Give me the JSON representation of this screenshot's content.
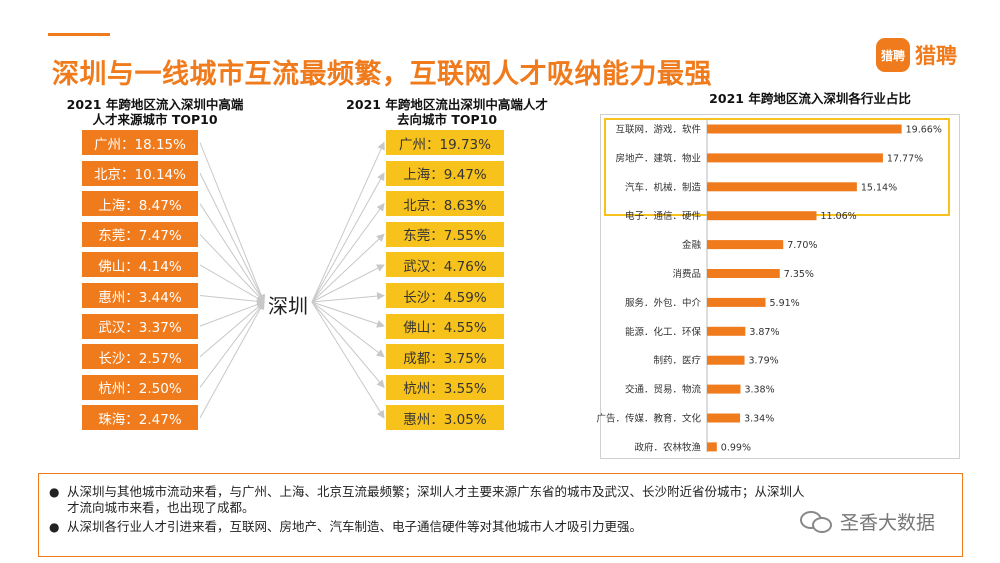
{
  "headline": "深圳与一线城市互流最频繁，互联网人才吸纳能力最强",
  "logo": {
    "badge": "猎聘",
    "text": "猎聘"
  },
  "center_city": "深圳",
  "chart_data": [
    {
      "type": "table",
      "title": "2021 年跨地区流入深圳中高端人才来源城市 TOP10",
      "title_lines": [
        "2021 年跨地区流入深圳中高端",
        "人才来源城市 TOP10"
      ],
      "categories": [
        "广州",
        "北京",
        "上海",
        "东莞",
        "佛山",
        "惠州",
        "武汉",
        "长沙",
        "杭州",
        "珠海"
      ],
      "values": [
        18.15,
        10.14,
        8.47,
        7.47,
        4.14,
        3.44,
        3.37,
        2.57,
        2.5,
        2.47
      ],
      "labels": [
        "广州：18.15%",
        "北京：10.14%",
        "上海：8.47%",
        "东莞：7.47%",
        "佛山：4.14%",
        "惠州：3.44%",
        "武汉：3.37%",
        "长沙：2.57%",
        "杭州：2.50%",
        "珠海：2.47%"
      ],
      "color": "#f07b1d"
    },
    {
      "type": "table",
      "title": "2021 年跨地区流出深圳中高端人才去向城市 TOP10",
      "title_lines": [
        "2021 年跨地区流出深圳中高端人才",
        "去向城市 TOP10"
      ],
      "categories": [
        "广州",
        "上海",
        "北京",
        "东莞",
        "武汉",
        "长沙",
        "佛山",
        "成都",
        "杭州",
        "惠州"
      ],
      "values": [
        19.73,
        9.47,
        8.63,
        7.55,
        4.76,
        4.59,
        4.55,
        3.75,
        3.55,
        3.05
      ],
      "labels": [
        "广州：19.73%",
        "上海：9.47%",
        "北京：8.63%",
        "东莞：7.55%",
        "武汉：4.76%",
        "长沙：4.59%",
        "佛山：4.55%",
        "成都：3.75%",
        "杭州：3.55%",
        "惠州：3.05%"
      ],
      "color": "#f7c21c"
    },
    {
      "type": "bar",
      "orientation": "horizontal",
      "title": "2021 年跨地区流入深圳各行业占比",
      "categories": [
        "互联网．游戏．软件",
        "房地产．建筑．物业",
        "汽车．机械．制造",
        "电子．通信．硬件",
        "金融",
        "消费品",
        "服务．外包．中介",
        "能源．化工．环保",
        "制药．医疗",
        "交通．贸易．物流",
        "广告．传媒．教育．文化",
        "政府．农林牧渔"
      ],
      "values": [
        19.66,
        17.77,
        15.14,
        11.06,
        7.7,
        7.35,
        5.91,
        3.87,
        3.79,
        3.38,
        3.34,
        0.99
      ],
      "value_labels": [
        "19.66%",
        "17.77%",
        "15.14%",
        "11.06%",
        "7.70%",
        "7.35%",
        "5.91%",
        "3.87%",
        "3.79%",
        "3.38%",
        "3.34%",
        "0.99%"
      ],
      "highlighted_categories": [
        "互联网．游戏．软件",
        "房地产．建筑．物业",
        "汽车．机械．制造",
        "电子．通信．硬件"
      ],
      "xlim": [
        0,
        20
      ],
      "color": "#f07b1d",
      "highlight_color": "#f7c21c",
      "grid": false,
      "legend": "none"
    }
  ],
  "notes": [
    "从深圳与其他城市流动来看，与广州、上海、北京互流最频繁；深圳人才主要来源广东省的城市及武汉、长沙附近省份城市；从深圳人\n才流向城市来看，也出现了成都。",
    "从深圳各行业人才引进来看，互联网、房地产、汽车制造、电子通信硬件等对其他城市人才吸引力更强。"
  ],
  "note_bullet": "●",
  "watermark": "圣香大数据",
  "colors": {
    "accent": "#f07b1d",
    "highlight": "#f7c21c",
    "arrow": "#c8c8c8"
  }
}
